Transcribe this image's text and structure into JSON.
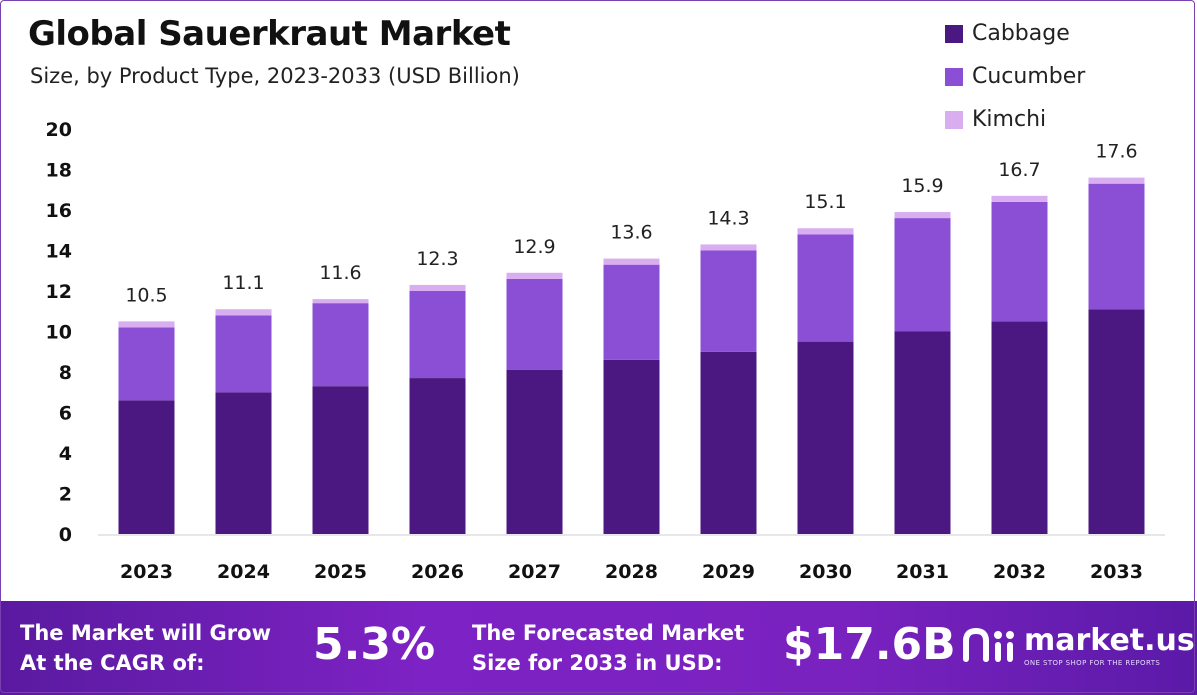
{
  "header": {
    "title": "Global Sauerkraut Market",
    "subtitle": "Size, by Product Type, 2023-2033 (USD Billion)"
  },
  "legend": {
    "items": [
      {
        "label": "Cabbage",
        "color": "#4b1780"
      },
      {
        "label": "Cucumber",
        "color": "#8a4fd4"
      },
      {
        "label": "Kimchi",
        "color": "#d9aef0"
      }
    ]
  },
  "chart_data": {
    "type": "bar",
    "stacked": true,
    "categories": [
      "2023",
      "2024",
      "2025",
      "2026",
      "2027",
      "2028",
      "2029",
      "2030",
      "2031",
      "2032",
      "2033"
    ],
    "series": [
      {
        "name": "Cabbage",
        "color": "#4b1780",
        "values": [
          6.6,
          7.0,
          7.3,
          7.7,
          8.1,
          8.6,
          9.0,
          9.5,
          10.0,
          10.5,
          11.1
        ]
      },
      {
        "name": "Cucumber",
        "color": "#8a4fd4",
        "values": [
          3.6,
          3.8,
          4.1,
          4.3,
          4.5,
          4.7,
          5.0,
          5.3,
          5.6,
          5.9,
          6.2
        ]
      },
      {
        "name": "Kimchi",
        "color": "#d9aef0",
        "values": [
          0.3,
          0.3,
          0.2,
          0.3,
          0.3,
          0.3,
          0.3,
          0.3,
          0.3,
          0.3,
          0.3
        ]
      }
    ],
    "totals": [
      "10.5",
      "11.1",
      "11.6",
      "12.3",
      "12.9",
      "13.6",
      "14.3",
      "15.1",
      "15.9",
      "16.7",
      "17.6"
    ],
    "yticks": [
      0,
      2,
      4,
      6,
      8,
      10,
      12,
      14,
      16,
      18,
      20
    ],
    "ylim": [
      0,
      20
    ],
    "grid": false
  },
  "footer": {
    "cagr_line1": "The Market will Grow",
    "cagr_line2": "At the CAGR of:",
    "cagr_value": "5.3%",
    "forecast_line1": "The Forecasted Market",
    "forecast_line2": "Size for 2033 in USD:",
    "forecast_value": "$17.6B",
    "brand_name": "market.us",
    "brand_tagline": "ONE STOP SHOP FOR THE REPORTS"
  }
}
